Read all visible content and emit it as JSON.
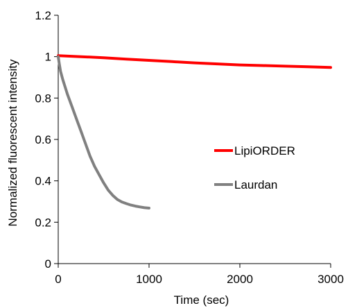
{
  "chart_data": {
    "type": "line",
    "title": "",
    "xlabel": "Time (sec)",
    "ylabel": "Normalized fluorescent intensity",
    "xlim": [
      0,
      3000
    ],
    "ylim": [
      0,
      1.2
    ],
    "xticks": [
      0,
      1000,
      2000,
      3000
    ],
    "yticks": [
      0,
      0.2,
      0.4,
      0.6,
      0.8,
      1,
      1.2
    ],
    "xtick_labels": [
      "0",
      "1000",
      "2000",
      "3000"
    ],
    "ytick_labels": [
      "0",
      "0.2",
      "0.4",
      "0.6",
      "0.8",
      "1",
      "1.2"
    ],
    "grid": false,
    "legend_position": "right-middle",
    "series": [
      {
        "name": "LipiORDER",
        "color": "#ff0000",
        "x": [
          0,
          250,
          500,
          750,
          1000,
          1250,
          1500,
          1750,
          2000,
          2250,
          2500,
          2750,
          3000
        ],
        "y": [
          1.005,
          1.0,
          0.995,
          0.988,
          0.982,
          0.976,
          0.97,
          0.965,
          0.96,
          0.957,
          0.954,
          0.951,
          0.948
        ]
      },
      {
        "name": "Laurdan",
        "color": "#808080",
        "x": [
          0,
          10,
          25,
          50,
          100,
          150,
          200,
          250,
          300,
          350,
          400,
          450,
          500,
          550,
          600,
          650,
          700,
          750,
          800,
          850,
          900,
          950,
          1000
        ],
        "y": [
          1.0,
          0.97,
          0.93,
          0.89,
          0.82,
          0.76,
          0.7,
          0.64,
          0.58,
          0.52,
          0.47,
          0.43,
          0.39,
          0.355,
          0.33,
          0.31,
          0.298,
          0.29,
          0.283,
          0.278,
          0.274,
          0.27,
          0.268
        ]
      }
    ]
  }
}
